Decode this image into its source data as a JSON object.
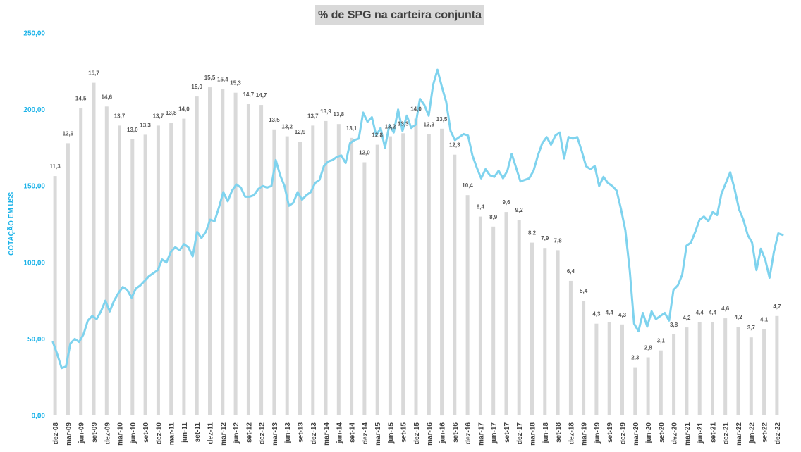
{
  "chart_data": {
    "type": "bar",
    "title": "% de SPG na carteira conjunta",
    "ylabel": "COTAÇÃO EM US$",
    "ylim": [
      0,
      250
    ],
    "yticks": [
      "0,00",
      "50,00",
      "100,00",
      "150,00",
      "200,00",
      "250,00"
    ],
    "ytick_values": [
      0,
      50,
      100,
      150,
      200,
      250
    ],
    "x_tick_labels": [
      "dez-08",
      "mar-09",
      "jun-09",
      "set-09",
      "dez-09",
      "mar-10",
      "jun-10",
      "set-10",
      "dez-10",
      "mar-11",
      "jun-11",
      "set-11",
      "dez-11",
      "mar-12",
      "jun-12",
      "set-12",
      "dez-12",
      "mar-13",
      "jun-13",
      "set-13",
      "dez-13",
      "mar-14",
      "jun-14",
      "set-14",
      "dez-14",
      "mar-15",
      "jun-15",
      "set-15",
      "dez-15",
      "mar-16",
      "jun-16",
      "set-16",
      "dez-16",
      "mar-17",
      "jun-17",
      "set-17",
      "dez-17",
      "mar-18",
      "jun-18",
      "set-18",
      "dez-18",
      "mar-19",
      "jun-19",
      "set-19",
      "dez-19",
      "mar-20",
      "jun-20",
      "set-20",
      "dez-20",
      "mar-21",
      "jun-21",
      "set-21",
      "dez-21",
      "mar-22",
      "jun-22",
      "set-22",
      "dez-22"
    ],
    "series": [
      {
        "type": "bar",
        "color": "#d9d9d9",
        "labels": [
          "11,3",
          "12,9",
          "14,5",
          "15,7",
          "14,6",
          "13,7",
          "13,0",
          "13,3",
          "13,7",
          "13,8",
          "14,0",
          "15,0",
          "15,5",
          "15,4",
          "15,3",
          "14,7",
          "14,7",
          "13,5",
          "13,2",
          "12,9",
          "13,7",
          "13,9",
          "13,8",
          "13,1",
          "12,0",
          "12,8",
          "13,2",
          "13,3",
          "14,0",
          "13,3",
          "13,5",
          "12,3",
          "10,4",
          "9,4",
          "8,9",
          "9,6",
          "9,2",
          "8,2",
          "7,9",
          "7,8",
          "6,4",
          "5,4",
          "4,3",
          "4,4",
          "4,3",
          "2,3",
          "2,8",
          "3,1",
          "3,8",
          "4,2",
          "4,4",
          "4,4",
          "4,6",
          "4,2",
          "3,7",
          "4,1",
          "4,7"
        ],
        "values": [
          156.5,
          178,
          201,
          217.5,
          202,
          189.5,
          180.5,
          183.5,
          189.5,
          191.5,
          194,
          208.5,
          214.5,
          213.5,
          211,
          203.5,
          203,
          187,
          182.5,
          179,
          189.5,
          192.5,
          190.5,
          181.5,
          165.5,
          177,
          182.5,
          184.5,
          194,
          184,
          187.5,
          170.5,
          144,
          130,
          123.5,
          133,
          128,
          113,
          109.5,
          108,
          88,
          75,
          60,
          61,
          59.5,
          31.5,
          38,
          42.5,
          53,
          57.5,
          61,
          61,
          63.5,
          58,
          51,
          56.5,
          65
        ]
      },
      {
        "type": "line",
        "color": "#7fd3ee",
        "values": [
          48,
          40,
          31,
          32,
          47,
          50,
          48,
          53,
          62,
          65,
          63,
          68,
          75,
          68,
          75,
          80,
          84,
          82,
          77,
          83,
          85,
          88,
          91,
          93,
          95,
          102,
          100,
          107,
          110,
          108,
          112,
          110,
          104,
          120,
          116,
          120,
          128,
          127,
          136,
          146,
          140,
          147,
          151,
          149,
          143,
          143,
          144,
          148,
          150,
          149,
          150,
          167,
          157,
          150,
          137,
          139,
          146,
          141,
          144,
          146,
          152,
          154,
          163,
          166,
          167,
          169,
          170,
          165,
          178,
          180,
          181,
          198,
          192,
          195,
          183,
          188,
          175,
          190,
          185,
          200,
          186,
          196,
          188,
          190,
          207,
          203,
          196,
          216,
          226,
          215,
          205,
          186,
          180,
          182,
          184,
          183,
          170,
          162,
          155,
          161,
          157,
          156,
          160,
          155,
          160,
          171,
          162,
          153,
          154,
          155,
          160,
          170,
          178,
          182,
          177,
          183,
          185,
          168,
          182,
          181,
          182,
          173,
          163,
          161,
          163,
          150,
          156,
          152,
          150,
          147,
          135,
          121,
          95,
          60,
          55,
          67,
          58,
          68,
          63,
          65,
          67,
          62,
          82,
          85,
          92,
          111,
          113,
          120,
          128,
          130,
          127,
          133,
          131,
          145,
          152,
          159,
          148,
          135,
          128,
          118,
          113,
          95,
          109,
          102,
          90,
          107,
          119,
          118
        ]
      }
    ]
  }
}
